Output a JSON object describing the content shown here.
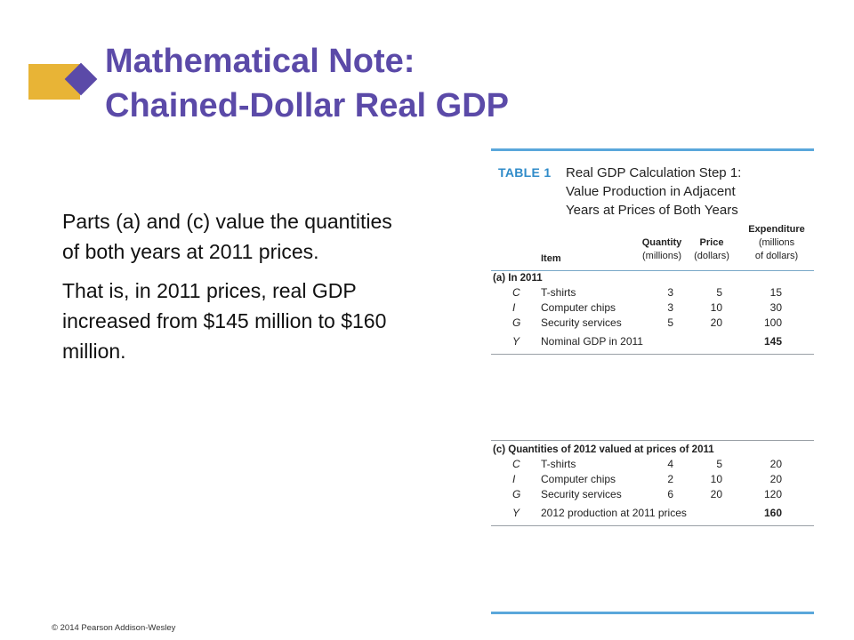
{
  "slide": {
    "title_line1": "Mathematical Note:",
    "title_line2": "Chained-Dollar Real GDP",
    "paragraphs": [
      "Parts (a) and (c) value the quantities of both years at 2011 prices.",
      "That is, in 2011 prices, real GDP increased from $145 million to $160 million."
    ],
    "copyright": "© 2014 Pearson Addison-Wesley",
    "accent_color": "#5b4aa8",
    "logo_color": "#e8b436"
  },
  "table": {
    "label": "TABLE 1",
    "title_lines": [
      "Real GDP Calculation Step 1:",
      "Value Production in Adjacent",
      "Years at Prices of Both Years"
    ],
    "columns": {
      "item": "Item",
      "quantity": "Quantity",
      "quantity_unit": "(millions)",
      "price": "Price",
      "price_unit": "(dollars)",
      "expenditure": "Expenditure",
      "expenditure_unit1": "(millions",
      "expenditure_unit2": "of dollars)"
    },
    "section_a": {
      "title": "(a) In 2011",
      "rows": [
        {
          "sym": "C",
          "item": "T-shirts",
          "qty": "3",
          "price": "5",
          "exp": "15"
        },
        {
          "sym": "I",
          "item": "Computer chips",
          "qty": "3",
          "price": "10",
          "exp": "30"
        },
        {
          "sym": "G",
          "item": "Security services",
          "qty": "5",
          "price": "20",
          "exp": "100"
        }
      ],
      "total": {
        "sym": "Y",
        "item": "Nominal GDP in 2011",
        "exp": "145"
      }
    },
    "section_c": {
      "title": "(c) Quantities of 2012 valued at prices of 2011",
      "rows": [
        {
          "sym": "C",
          "item": "T-shirts",
          "qty": "4",
          "price": "5",
          "exp": "20"
        },
        {
          "sym": "I",
          "item": "Computer chips",
          "qty": "2",
          "price": "10",
          "exp": "20"
        },
        {
          "sym": "G",
          "item": "Security services",
          "qty": "6",
          "price": "20",
          "exp": "120"
        }
      ],
      "total": {
        "sym": "Y",
        "item": "2012 production at 2011 prices",
        "exp": "160"
      }
    }
  }
}
